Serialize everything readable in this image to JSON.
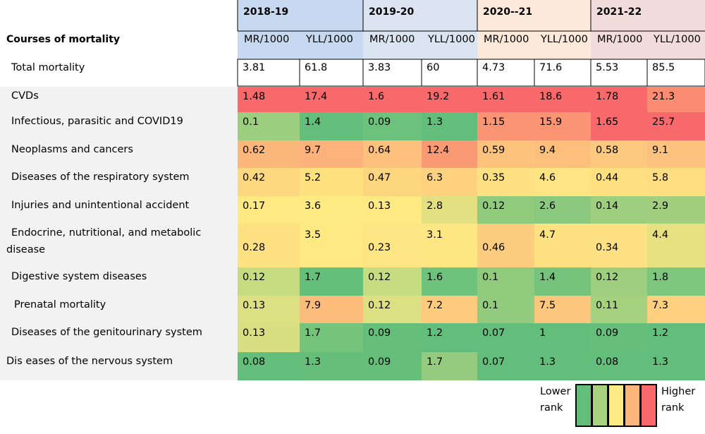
{
  "table_title": "Courses of mortality",
  "periods": [
    "2018-19",
    "2019-20",
    "2020--21",
    "2021-22"
  ],
  "metrics": [
    "MR/1000",
    "YLL/1000"
  ],
  "period_colors": [
    "#c6d9f0",
    "#dbe5f1",
    "#fde9d9",
    "#f2dcdb"
  ],
  "total": {
    "label": "Total mortality",
    "values": [
      3.81,
      61.8,
      3.83,
      60,
      4.73,
      71.6,
      5.53,
      85.5
    ]
  },
  "legend": {
    "lower": "Lower\nrank",
    "higher": "Higher\nrank",
    "colors": [
      "#63be7b",
      "#a9d27f",
      "#ffeb84",
      "#fcb57a",
      "#f8696b"
    ]
  },
  "chart_data": {
    "type": "heatmap",
    "title": "Courses of mortality",
    "columns": [
      "2018-19 MR/1000",
      "2018-19 YLL/1000",
      "2019-20 MR/1000",
      "2019-20 YLL/1000",
      "2020--21 MR/1000",
      "2020--21 YLL/1000",
      "2021-22 MR/1000",
      "2021-22 YLL/1000"
    ],
    "rows": [
      {
        "label": "CVDs",
        "values": [
          1.48,
          17.4,
          1.6,
          19.2,
          1.61,
          18.6,
          1.78,
          21.3
        ],
        "colors": [
          "#f8696b",
          "#f8696b",
          "#f8696b",
          "#f8696b",
          "#f8696b",
          "#f8696b",
          "#f8696b",
          "#fa8c72"
        ]
      },
      {
        "label": "Infectious, parasitic and COVID19",
        "values": [
          0.1,
          1.4,
          0.09,
          1.3,
          1.15,
          15.9,
          1.65,
          25.7
        ],
        "colors": [
          "#9bce7e",
          "#63be7b",
          "#6cc17c",
          "#63be7b",
          "#fa9472",
          "#fa9473",
          "#f8696b",
          "#f8696b"
        ]
      },
      {
        "label": "Neoplasms and cancers",
        "values": [
          0.62,
          9.7,
          0.64,
          12.4,
          0.59,
          9.4,
          0.58,
          9.1
        ],
        "colors": [
          "#fcb87b",
          "#fcb27a",
          "#fdc07d",
          "#fa9a74",
          "#fdc37d",
          "#fdbf7c",
          "#fdc97e",
          "#fdc27d"
        ]
      },
      {
        "label": "Diseases of the respiratory system",
        "values": [
          0.42,
          5.2,
          0.47,
          6.3,
          0.35,
          4.6,
          0.44,
          5.8
        ],
        "colors": [
          "#fed881",
          "#fde17f",
          "#fed57f",
          "#fed27e",
          "#fee182",
          "#fee482",
          "#fee081",
          "#fede81"
        ]
      },
      {
        "label": "Injuries and unintentional accident",
        "values": [
          0.17,
          3.6,
          0.13,
          2.8,
          0.12,
          2.6,
          0.14,
          2.9
        ],
        "colors": [
          "#fee982",
          "#feea83",
          "#fee983",
          "#e3e082",
          "#90ca7d",
          "#8bc97e",
          "#9dcf7e",
          "#a2cf7e"
        ]
      },
      {
        "label": "Endocrine, nutritional, and metabolic\ndisease",
        "values": [
          0.28,
          3.5,
          0.23,
          3.1,
          0.46,
          4.7,
          0.34,
          4.4
        ],
        "colors": [
          "#fee282",
          "#fee983",
          "#fee583",
          "#fee783",
          "#fdcd7f",
          "#fee282",
          "#fee182",
          "#e6e282"
        ]
      },
      {
        "label": "Digestive system diseases",
        "values": [
          0.12,
          1.7,
          0.12,
          1.6,
          0.1,
          1.4,
          0.12,
          1.8
        ],
        "colors": [
          "#c6dc81",
          "#64bf7b",
          "#c6dc81",
          "#6ec27c",
          "#90ca7d",
          "#75c37c",
          "#9dcf7e",
          "#7cc67d"
        ]
      },
      {
        "label": "Prenatal mortality",
        "values": [
          0.13,
          7.9,
          0.12,
          7.2,
          0.1,
          7.5,
          0.11,
          7.3
        ],
        "colors": [
          "#dde082",
          "#fbbc7c",
          "#dde082",
          "#fdcb7e",
          "#92ca7e",
          "#fdc67d",
          "#a5d07e",
          "#fdd07f"
        ]
      },
      {
        "label": "Diseases of the genitourinary system",
        "values": [
          0.13,
          1.7,
          0.09,
          1.2,
          0.07,
          1,
          0.09,
          1.2
        ],
        "colors": [
          "#d8df82",
          "#75c47c",
          "#65bf7b",
          "#63be7b",
          "#63be7b",
          "#63be7b",
          "#65bf7b",
          "#63be7b"
        ]
      },
      {
        "label": "Dis  eases of the nervous system",
        "values": [
          0.08,
          1.3,
          0.09,
          1.7,
          0.07,
          1.3,
          0.08,
          1.3
        ],
        "colors": [
          "#63be7b",
          "#65bf7b",
          "#65bf7b",
          "#94cb7e",
          "#63be7b",
          "#63be7b",
          "#63be7b",
          "#63be7b"
        ]
      }
    ]
  }
}
